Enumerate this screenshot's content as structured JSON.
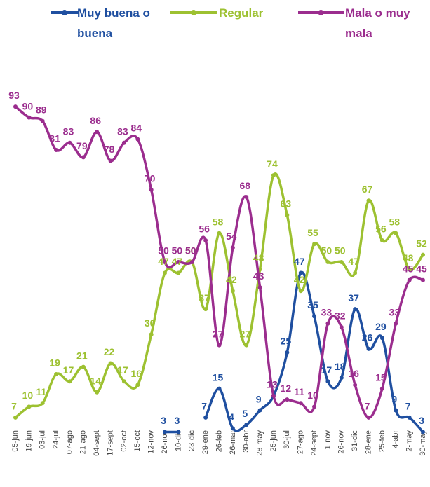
{
  "chart_data": {
    "type": "line",
    "categories": [
      "05-jun",
      "19-jun",
      "03-jul",
      "24-jul",
      "07-ago",
      "21-ago",
      "04-sept",
      "17-sept",
      "02-oct",
      "15-oct",
      "12-nov",
      "26-nov",
      "10-dic",
      "23-dic",
      "29-ene",
      "26-feb",
      "26-mar",
      "30-abr",
      "28-may",
      "25-jun",
      "30-jul",
      "27-ago",
      "24-sept",
      "1-nov",
      "26-nov",
      "31-dic",
      "28-ene",
      "25-feb",
      "4-abr",
      "2-may",
      "30-may"
    ],
    "series": [
      {
        "name": "Muy buena o buena",
        "color": "#1f4fa0",
        "values": [
          null,
          null,
          null,
          null,
          null,
          null,
          null,
          null,
          null,
          null,
          null,
          3,
          3,
          null,
          7,
          15,
          4,
          5,
          9,
          13,
          25,
          47,
          35,
          17,
          18,
          37,
          26,
          29,
          9,
          7,
          3
        ]
      },
      {
        "name": "Regular",
        "color": "#9dc131",
        "values": [
          7,
          10,
          11,
          19,
          17,
          21,
          14,
          22,
          17,
          16,
          30,
          47,
          47,
          50,
          37,
          58,
          42,
          27,
          48,
          74,
          63,
          42,
          55,
          50,
          50,
          47,
          67,
          56,
          58,
          48,
          52
        ]
      },
      {
        "name": "Mala o muy mala",
        "color": "#9b2d8e",
        "values": [
          93,
          90,
          89,
          81,
          83,
          79,
          86,
          78,
          83,
          84,
          70,
          50,
          50,
          50,
          56,
          27,
          54,
          68,
          43,
          13,
          12,
          11,
          10,
          33,
          32,
          16,
          7,
          15,
          33,
          45,
          45
        ]
      }
    ],
    "ylim": [
      0,
      100
    ]
  }
}
